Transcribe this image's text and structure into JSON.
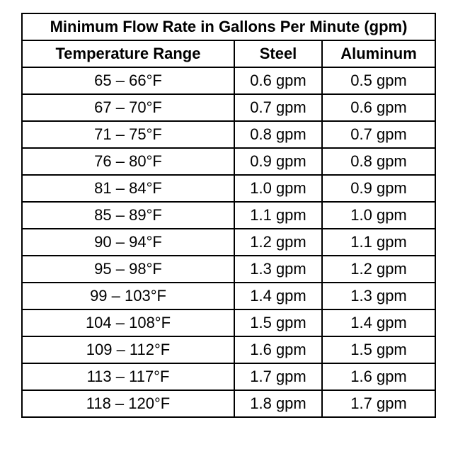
{
  "table": {
    "title": "Minimum Flow Rate in Gallons Per Minute (gpm)",
    "headers": [
      "Temperature Range",
      "Steel",
      "Aluminum"
    ],
    "rows": [
      [
        "65 – 66°F",
        "0.6 gpm",
        "0.5 gpm"
      ],
      [
        "67 – 70°F",
        "0.7 gpm",
        "0.6 gpm"
      ],
      [
        "71 – 75°F",
        "0.8 gpm",
        "0.7 gpm"
      ],
      [
        "76 – 80°F",
        "0.9 gpm",
        "0.8 gpm"
      ],
      [
        "81 – 84°F",
        "1.0 gpm",
        "0.9 gpm"
      ],
      [
        "85 – 89°F",
        "1.1 gpm",
        "1.0 gpm"
      ],
      [
        "90 – 94°F",
        "1.2 gpm",
        "1.1 gpm"
      ],
      [
        "95 – 98°F",
        "1.3 gpm",
        "1.2 gpm"
      ],
      [
        "99 – 103°F",
        "1.4 gpm",
        "1.3 gpm"
      ],
      [
        "104 – 108°F",
        "1.5 gpm",
        "1.4 gpm"
      ],
      [
        "109 – 112°F",
        "1.6 gpm",
        "1.5 gpm"
      ],
      [
        "113 – 117°F",
        "1.7 gpm",
        "1.6 gpm"
      ],
      [
        "118 – 120°F",
        "1.8 gpm",
        "1.7 gpm"
      ]
    ]
  }
}
